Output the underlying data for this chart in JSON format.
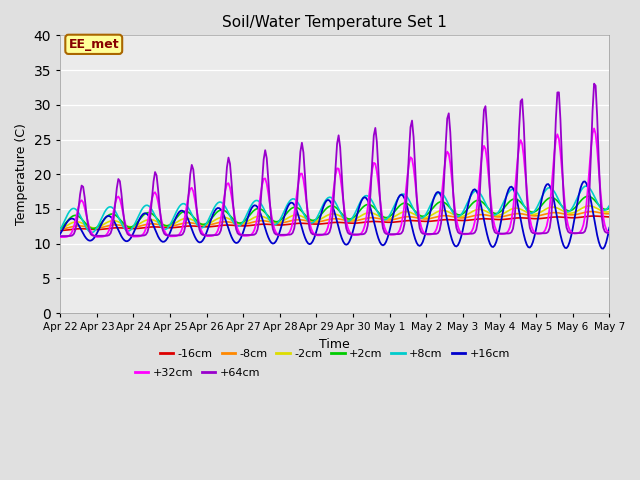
{
  "title": "Soil/Water Temperature Set 1",
  "xlabel": "Time",
  "ylabel": "Temperature (C)",
  "ylim": [
    0,
    40
  ],
  "yticks": [
    0,
    5,
    10,
    15,
    20,
    25,
    30,
    35,
    40
  ],
  "bg_color": "#e0e0e0",
  "plot_bg_color": "#ebebeb",
  "annotation_text": "EE_met",
  "annotation_bg": "#ffff99",
  "annotation_border": "#aa6600",
  "annotation_text_color": "#880000",
  "legend_entries": [
    "-16cm",
    "-8cm",
    "-2cm",
    "+2cm",
    "+8cm",
    "+16cm",
    "+32cm",
    "+64cm"
  ],
  "legend_colors": [
    "#dd0000",
    "#ff8800",
    "#dddd00",
    "#00cc00",
    "#00cccc",
    "#0000cc",
    "#ff00ff",
    "#9900cc"
  ],
  "date_labels": [
    "Apr 22",
    "Apr 23",
    "Apr 24",
    "Apr 25",
    "Apr 26",
    "Apr 27",
    "Apr 28",
    "Apr 29",
    "Apr 30",
    "May 1",
    "May 2",
    "May 3",
    "May 4",
    "May 5",
    "May 6",
    "May 7"
  ]
}
